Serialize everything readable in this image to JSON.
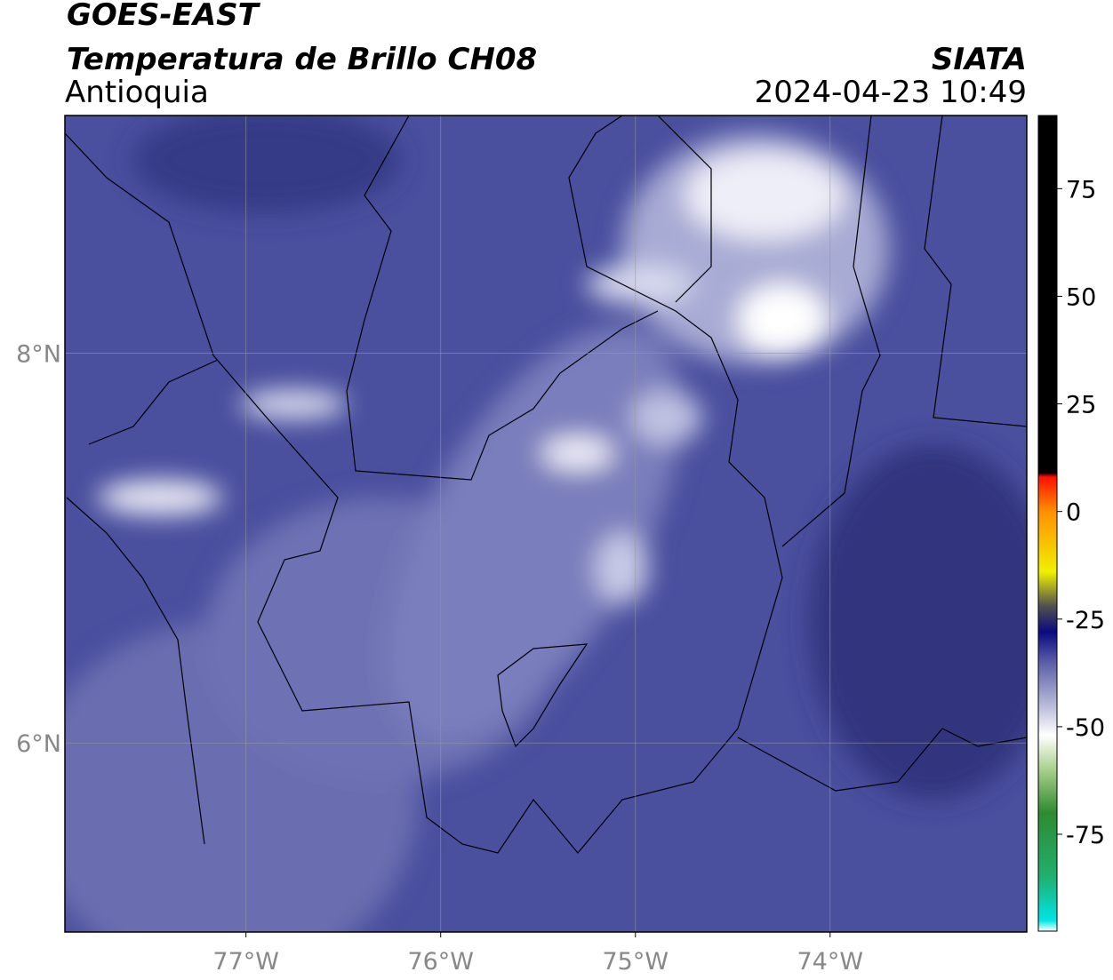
{
  "header": {
    "title": "GOES-EAST",
    "subtitle": "Temperatura de Brillo CH08",
    "region": "Antioquia",
    "source": "SIATA",
    "datetime": "2024-04-23 10:49"
  },
  "map": {
    "xlim": [
      -77.93,
      -72.99
    ],
    "ylim": [
      5.03,
      9.22
    ],
    "grid": true,
    "xticks": [
      {
        "value": -77,
        "label": "77°W"
      },
      {
        "value": -76,
        "label": "76°W"
      },
      {
        "value": -75,
        "label": "75°W"
      },
      {
        "value": -74,
        "label": "74°W"
      }
    ],
    "yticks": [
      {
        "value": 6,
        "label": "6°N"
      },
      {
        "value": 8,
        "label": "8°N"
      }
    ]
  },
  "colorbar": {
    "lim": [
      -97.5,
      92
    ],
    "ticks": [
      -75,
      -50,
      -25,
      0,
      25,
      50,
      75
    ],
    "stops": [
      {
        "value": -97.5,
        "color": "#ffffff"
      },
      {
        "value": -95,
        "color": "#00e5e5"
      },
      {
        "value": -85,
        "color": "#20b070"
      },
      {
        "value": -70,
        "color": "#2e8b2e"
      },
      {
        "value": -60,
        "color": "#a8d08a"
      },
      {
        "value": -52,
        "color": "#ffffff"
      },
      {
        "value": -45,
        "color": "#b8bad8"
      },
      {
        "value": -35,
        "color": "#5a5ea8"
      },
      {
        "value": -28,
        "color": "#0a0a80"
      },
      {
        "value": -22,
        "color": "#505050"
      },
      {
        "value": -14,
        "color": "#f0f000"
      },
      {
        "value": 0,
        "color": "#ff9000"
      },
      {
        "value": 8,
        "color": "#ff1000"
      },
      {
        "value": 9,
        "color": "#000000"
      },
      {
        "value": 92,
        "color": "#000000"
      }
    ]
  }
}
